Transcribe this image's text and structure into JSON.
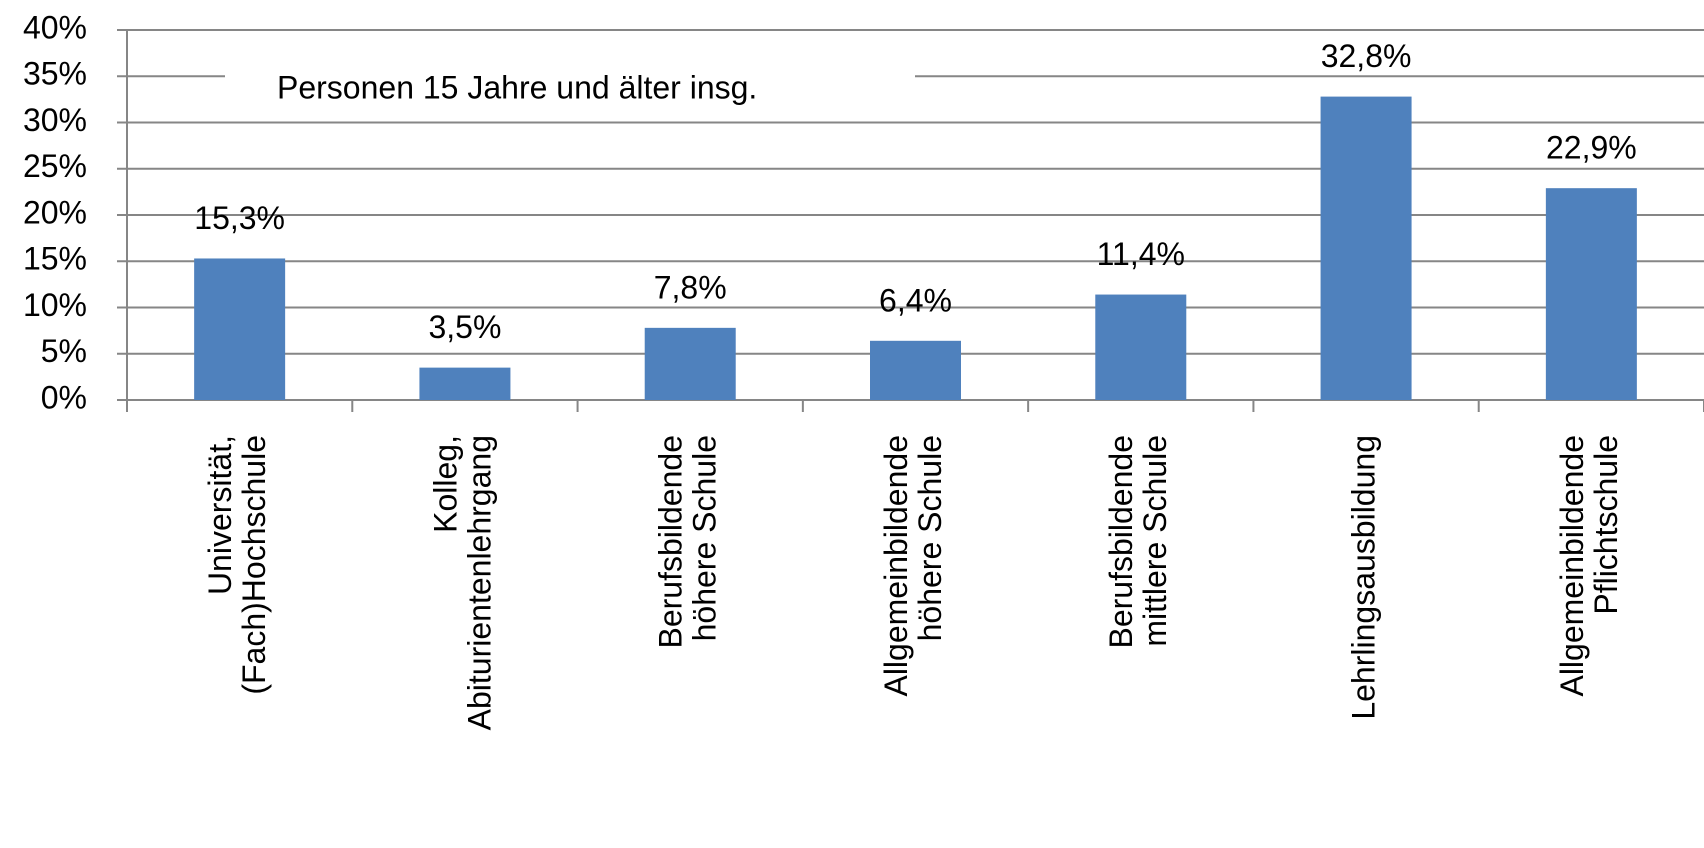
{
  "chart_data": {
    "type": "bar",
    "annotation": "Personen 15 Jahre und älter insg.",
    "categories": [
      [
        "Universität,",
        "(Fach)Hochschule"
      ],
      [
        "Kolleg,",
        "Abiturientenlehrgang"
      ],
      [
        "Berufsbildende",
        "höhere Schule"
      ],
      [
        "Allgemeinbildende",
        "höhere Schule"
      ],
      [
        "Berufsbildende",
        "mittlere Schule"
      ],
      [
        "Lehrlingsausbildung"
      ],
      [
        "Allgemeinbildende",
        "Pflichtschule"
      ]
    ],
    "values": [
      15.3,
      3.5,
      7.8,
      6.4,
      11.4,
      32.8,
      22.9
    ],
    "value_labels": [
      "15,3%",
      "3,5%",
      "7,8%",
      "6,4%",
      "11,4%",
      "32,8%",
      "22,9%"
    ],
    "color": "#4f81bd",
    "ylim": [
      0,
      40
    ],
    "yticks": [
      {
        "value": 0,
        "label": "0%"
      },
      {
        "value": 5,
        "label": "5%"
      },
      {
        "value": 10,
        "label": "10%"
      },
      {
        "value": 15,
        "label": "15%"
      },
      {
        "value": 20,
        "label": "20%"
      },
      {
        "value": 25,
        "label": "25%"
      },
      {
        "value": 30,
        "label": "30%"
      },
      {
        "value": 35,
        "label": "35%"
      },
      {
        "value": 40,
        "label": "40%"
      }
    ],
    "grid": true
  }
}
